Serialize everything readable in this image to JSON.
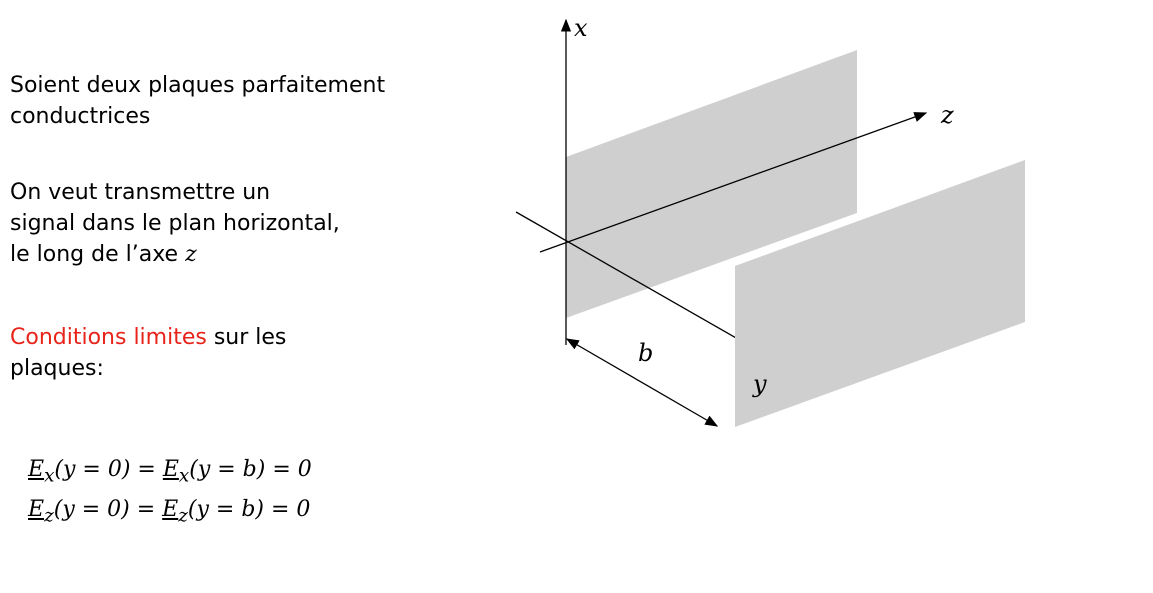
{
  "text": {
    "para1_line1": "Soient deux plaques parfaitement",
    "para1_line2": "conductrices",
    "para2_line1": "On veut transmettre un",
    "para2_line2": "signal dans le plan horizontal,",
    "para2_line3_prefix": "le long de l’axe",
    "para2_axis": "z",
    "para3_highlight": "Conditions limites",
    "para3_rest": " sur les",
    "para3_line2": "plaques:"
  },
  "equations": {
    "eq1_lhs": "E",
    "eq1_sub": "x",
    "eq1_mid": "(y = 0) = ",
    "eq1_rhs": "E",
    "eq1_rhs_sub": "x",
    "eq1_end": "(y = b) = 0",
    "eq2_lhs": "E",
    "eq2_sub": "z",
    "eq2_mid": "(y = 0) = ",
    "eq2_rhs": "E",
    "eq2_rhs_sub": "z",
    "eq2_end": "(y = b) = 0"
  },
  "diagram": {
    "x_label": "x",
    "y_label": "y",
    "z_label": "z",
    "b_label": "b",
    "plate_color": "#cfcfcf",
    "highlight_color": "#e8241a"
  }
}
